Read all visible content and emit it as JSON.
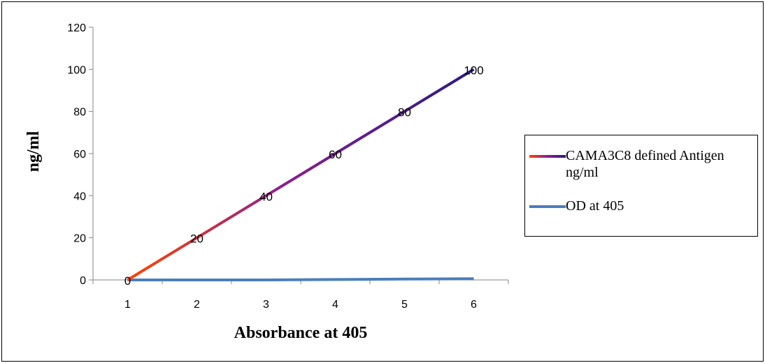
{
  "chart_data": {
    "type": "line",
    "xlabel": "Absorbance at 405",
    "ylabel": "ng/ml",
    "x": [
      1,
      2,
      3,
      4,
      5,
      6
    ],
    "xlim": [
      0.5,
      6.5
    ],
    "ylim": [
      0,
      120
    ],
    "yticks": [
      0,
      20,
      40,
      60,
      80,
      100,
      120
    ],
    "grid": false,
    "legend_position": "right",
    "series": [
      {
        "name": "CAMA3C8 defined Antigen ng/ml",
        "values": [
          0,
          20,
          40,
          60,
          80,
          100
        ],
        "data_labels": [
          "0",
          "20",
          "40",
          "60",
          "80",
          "100"
        ],
        "color_start": "#ff4500",
        "color_mid": "#8b1f8f",
        "color_end": "#2a1a80"
      },
      {
        "name": "OD at 405",
        "values": [
          0,
          0,
          0,
          0.2,
          0.4,
          0.6
        ],
        "color": "#4a7ebb"
      }
    ]
  }
}
